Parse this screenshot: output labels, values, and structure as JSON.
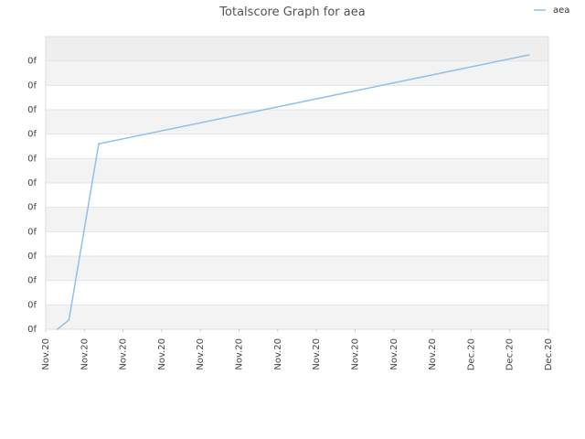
{
  "chart_data": {
    "type": "line",
    "title": "Totalscore Graph for aea",
    "xlabel": "",
    "ylabel": "",
    "grid": true,
    "legend_position": "top-right",
    "y_tick_labels": [
      "0f",
      "0f",
      "0f",
      "0f",
      "0f",
      "0f",
      "0f",
      "0f",
      "0f",
      "0f",
      "0f",
      "0f"
    ],
    "x_tick_labels": [
      "Nov.20",
      "Nov.20",
      "Nov.20",
      "Nov.20",
      "Nov.20",
      "Nov.20",
      "Nov.20",
      "Nov.20",
      "Nov.20",
      "Nov.20",
      "Nov.20",
      "Dec.20",
      "Dec.20",
      "Dec.20"
    ],
    "xlim": [
      0,
      13
    ],
    "ylim": [
      0,
      12
    ],
    "series": [
      {
        "name": "aea",
        "color": "#90c0ea",
        "x": [
          0.3,
          0.6,
          1.37,
          12.5
        ],
        "y": [
          0,
          0.38,
          7.6,
          11.25
        ]
      }
    ]
  }
}
